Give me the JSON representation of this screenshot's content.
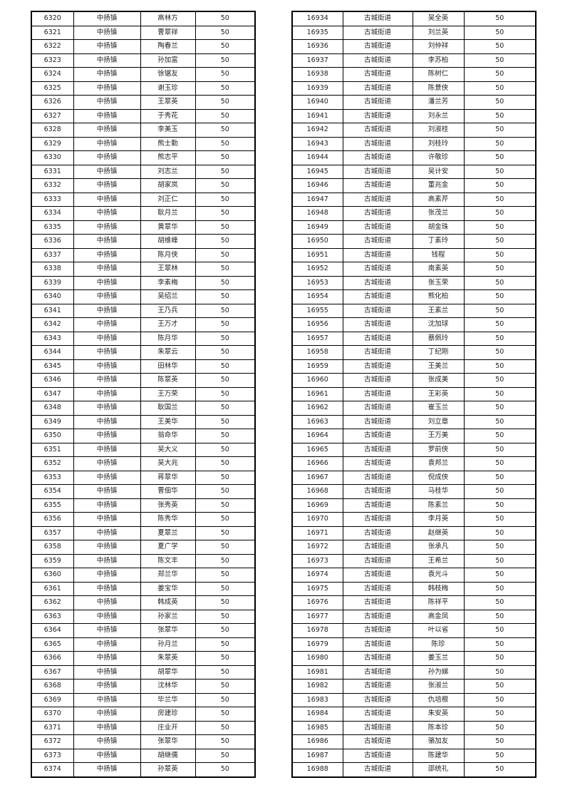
{
  "left": {
    "town": "中扬镇",
    "amount": "50",
    "rows": [
      {
        "id": "6320",
        "name": "高林方"
      },
      {
        "id": "6321",
        "name": "曹翠祥"
      },
      {
        "id": "6322",
        "name": "陶春兰"
      },
      {
        "id": "6323",
        "name": "孙加富"
      },
      {
        "id": "6324",
        "name": "徐锯友"
      },
      {
        "id": "6325",
        "name": "谢玉珍"
      },
      {
        "id": "6326",
        "name": "王翠英"
      },
      {
        "id": "6327",
        "name": "于秀花"
      },
      {
        "id": "6328",
        "name": "李美玉"
      },
      {
        "id": "6329",
        "name": "熊士勤"
      },
      {
        "id": "6330",
        "name": "熊志平"
      },
      {
        "id": "6331",
        "name": "刘志兰"
      },
      {
        "id": "6332",
        "name": "胡家岚"
      },
      {
        "id": "6333",
        "name": "刘正仁"
      },
      {
        "id": "6334",
        "name": "耿月兰"
      },
      {
        "id": "6335",
        "name": "黄翠华"
      },
      {
        "id": "6336",
        "name": "胡维峰"
      },
      {
        "id": "6337",
        "name": "陈月侠"
      },
      {
        "id": "6338",
        "name": "王翠林"
      },
      {
        "id": "6339",
        "name": "李素梅"
      },
      {
        "id": "6340",
        "name": "吴绍兰"
      },
      {
        "id": "6341",
        "name": "王乃兵"
      },
      {
        "id": "6342",
        "name": "王万才"
      },
      {
        "id": "6343",
        "name": "陈月华"
      },
      {
        "id": "6344",
        "name": "朱翠云"
      },
      {
        "id": "6345",
        "name": "田林华"
      },
      {
        "id": "6346",
        "name": "陈翠英"
      },
      {
        "id": "6347",
        "name": "王万荣"
      },
      {
        "id": "6348",
        "name": "耿国兰"
      },
      {
        "id": "6349",
        "name": "王美华"
      },
      {
        "id": "6350",
        "name": "翁命华"
      },
      {
        "id": "6351",
        "name": "吴大义"
      },
      {
        "id": "6352",
        "name": "吴大兆"
      },
      {
        "id": "6353",
        "name": "蒋翠华"
      },
      {
        "id": "6354",
        "name": "曹佃华"
      },
      {
        "id": "6355",
        "name": "张秀英"
      },
      {
        "id": "6356",
        "name": "陈秀华"
      },
      {
        "id": "6357",
        "name": "夏翠兰"
      },
      {
        "id": "6358",
        "name": "夏广学"
      },
      {
        "id": "6359",
        "name": "陈文丰"
      },
      {
        "id": "6360",
        "name": "郑兰华"
      },
      {
        "id": "6361",
        "name": "姜宝华"
      },
      {
        "id": "6362",
        "name": "韩成英"
      },
      {
        "id": "6363",
        "name": "孙家兰"
      },
      {
        "id": "6364",
        "name": "张翠华"
      },
      {
        "id": "6365",
        "name": "孙月兰"
      },
      {
        "id": "6366",
        "name": "朱翠英"
      },
      {
        "id": "6367",
        "name": "胡翠华"
      },
      {
        "id": "6368",
        "name": "沈林华"
      },
      {
        "id": "6369",
        "name": "毕兰华"
      },
      {
        "id": "6370",
        "name": "房建珍"
      },
      {
        "id": "6371",
        "name": "庄业开"
      },
      {
        "id": "6372",
        "name": "张翠华"
      },
      {
        "id": "6373",
        "name": "胡继儒"
      },
      {
        "id": "6374",
        "name": "孙翠英"
      }
    ]
  },
  "right": {
    "town": "古城街道",
    "amount": "50",
    "rows": [
      {
        "id": "16934",
        "name": "吴全英"
      },
      {
        "id": "16935",
        "name": "刘兰英"
      },
      {
        "id": "16936",
        "name": "刘仲祥"
      },
      {
        "id": "16937",
        "name": "李苏柏"
      },
      {
        "id": "16938",
        "name": "陈树仁"
      },
      {
        "id": "16939",
        "name": "陈景侠"
      },
      {
        "id": "16940",
        "name": "潘兰芳"
      },
      {
        "id": "16941",
        "name": "刘永兰"
      },
      {
        "id": "16942",
        "name": "刘淑桂"
      },
      {
        "id": "16943",
        "name": "刘桂玲"
      },
      {
        "id": "16944",
        "name": "许敬珍"
      },
      {
        "id": "16945",
        "name": "吴计安"
      },
      {
        "id": "16946",
        "name": "董兆金"
      },
      {
        "id": "16947",
        "name": "高素芹"
      },
      {
        "id": "16948",
        "name": "张茂兰"
      },
      {
        "id": "16949",
        "name": "胡金珠"
      },
      {
        "id": "16950",
        "name": "丁素玲"
      },
      {
        "id": "16951",
        "name": "钱程"
      },
      {
        "id": "16952",
        "name": "南素英"
      },
      {
        "id": "16953",
        "name": "张玉荣"
      },
      {
        "id": "16954",
        "name": "熊化柏"
      },
      {
        "id": "16955",
        "name": "王素兰"
      },
      {
        "id": "16956",
        "name": "沈加球"
      },
      {
        "id": "16957",
        "name": "蔡佩玲"
      },
      {
        "id": "16958",
        "name": "丁纪刚"
      },
      {
        "id": "16959",
        "name": "王美兰"
      },
      {
        "id": "16960",
        "name": "张成美"
      },
      {
        "id": "16961",
        "name": "王彩英"
      },
      {
        "id": "16962",
        "name": "崔玉兰"
      },
      {
        "id": "16963",
        "name": "刘立章"
      },
      {
        "id": "16964",
        "name": "王万美"
      },
      {
        "id": "16965",
        "name": "罗前侠"
      },
      {
        "id": "16966",
        "name": "袁邦兰"
      },
      {
        "id": "16967",
        "name": "倪成侠"
      },
      {
        "id": "16968",
        "name": "马桂华"
      },
      {
        "id": "16969",
        "name": "陈素兰"
      },
      {
        "id": "16970",
        "name": "李月英"
      },
      {
        "id": "16971",
        "name": "赵继英"
      },
      {
        "id": "16972",
        "name": "张承凡"
      },
      {
        "id": "16973",
        "name": "王希兰"
      },
      {
        "id": "16974",
        "name": "袁光斗"
      },
      {
        "id": "16975",
        "name": "韩枝梅"
      },
      {
        "id": "16976",
        "name": "陈祥平"
      },
      {
        "id": "16977",
        "name": "高金凤"
      },
      {
        "id": "16978",
        "name": "叶以省"
      },
      {
        "id": "16979",
        "name": "陈珍"
      },
      {
        "id": "16980",
        "name": "姜玉兰"
      },
      {
        "id": "16981",
        "name": "孙为娣"
      },
      {
        "id": "16982",
        "name": "张淑兰"
      },
      {
        "id": "16983",
        "name": "仇培根"
      },
      {
        "id": "16984",
        "name": "朱安英"
      },
      {
        "id": "16985",
        "name": "陈本珍"
      },
      {
        "id": "16986",
        "name": "骆加友"
      },
      {
        "id": "16987",
        "name": "陈建华"
      },
      {
        "id": "16988",
        "name": "邵统礼"
      }
    ]
  }
}
